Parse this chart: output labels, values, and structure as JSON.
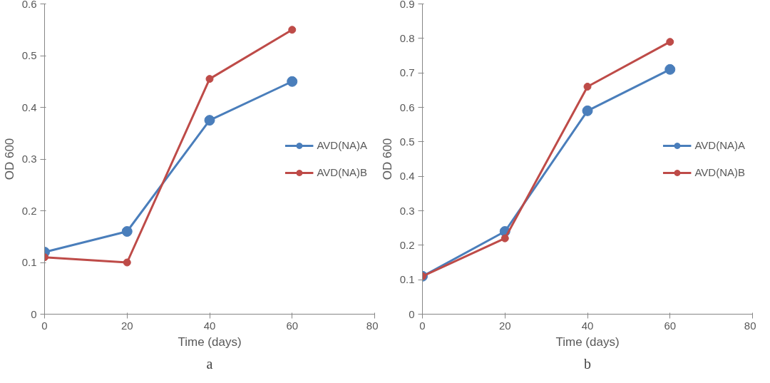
{
  "chart_data": [
    {
      "type": "line",
      "xlabel": "Time (days)",
      "ylabel": "OD 600",
      "annotations": [
        "a"
      ],
      "x": [
        0,
        20,
        40,
        60
      ],
      "xlim": [
        0,
        80
      ],
      "xticks": [
        0,
        20,
        40,
        60,
        80
      ],
      "ylim": [
        0,
        0.6
      ],
      "yticks": [
        0,
        0.1,
        0.2,
        0.3,
        0.4,
        0.5,
        0.6
      ],
      "grid": false,
      "legend": "right",
      "marker": "circle",
      "series": [
        {
          "name": "AVD(NA)A",
          "color": "#4a7ebb",
          "values": [
            0.12,
            0.16,
            0.375,
            0.45
          ]
        },
        {
          "name": "AVD(NA)B",
          "color": "#be4b48",
          "values": [
            0.11,
            0.1,
            0.455,
            0.55
          ]
        }
      ]
    },
    {
      "type": "line",
      "xlabel": "Time (days)",
      "ylabel": "OD 600",
      "annotations": [
        "b"
      ],
      "x": [
        0,
        20,
        40,
        60
      ],
      "xlim": [
        0,
        80
      ],
      "xticks": [
        0,
        20,
        40,
        60,
        80
      ],
      "ylim": [
        0,
        0.9
      ],
      "yticks": [
        0,
        0.1,
        0.2,
        0.3,
        0.4,
        0.5,
        0.6,
        0.7,
        0.8,
        0.9
      ],
      "grid": false,
      "legend": "right",
      "marker": "circle",
      "series": [
        {
          "name": "AVD(NA)A",
          "color": "#4a7ebb",
          "values": [
            0.11,
            0.24,
            0.59,
            0.71
          ]
        },
        {
          "name": "AVD(NA)B",
          "color": "#be4b48",
          "values": [
            0.11,
            0.22,
            0.66,
            0.79
          ]
        }
      ]
    }
  ]
}
